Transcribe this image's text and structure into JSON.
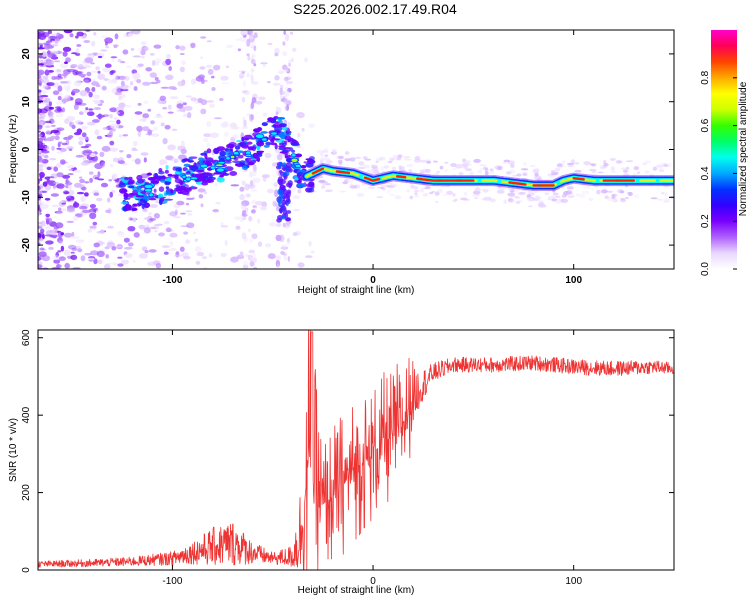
{
  "page": {
    "title": "S225.2026.002.17.49.R04"
  },
  "chart_data": [
    {
      "type": "heatmap",
      "xlabel": "Height of straight line (km)",
      "ylabel": "Frequency (Hz)",
      "xlim": [
        -167,
        150
      ],
      "ylim": [
        -25,
        25
      ],
      "x_ticks": [
        -100,
        0,
        100
      ],
      "y_ticks": [
        -20,
        -10,
        0,
        10,
        20
      ],
      "colorbar": {
        "label": "Normalized spectral amplitude",
        "range": [
          0,
          1
        ],
        "ticks": [
          0.0,
          0.2,
          0.4,
          0.6,
          0.8
        ],
        "colormap": [
          "#ffffff",
          "#e8d8ff",
          "#b060ff",
          "#7a00ff",
          "#3300ff",
          "#0033ff",
          "#00a8ff",
          "#00ffee",
          "#00ff66",
          "#33ff00",
          "#ccff00",
          "#ffff00",
          "#ffaa00",
          "#ff4400",
          "#ff0055",
          "#ff00cc"
        ]
      },
      "ridge": {
        "x": [
          -125,
          -115,
          -105,
          -95,
          -85,
          -75,
          -65,
          -55,
          -50,
          -45,
          -40,
          -35,
          -30,
          -25,
          -20,
          -10,
          0,
          10,
          20,
          30,
          40,
          50,
          60,
          70,
          80,
          90,
          95,
          100,
          110,
          120,
          130,
          140,
          150
        ],
        "freq": [
          -9.5,
          -9,
          -7.5,
          -6,
          -4,
          -3,
          -1,
          2,
          4,
          3,
          -1,
          -6,
          -5,
          -4,
          -4.5,
          -5,
          -6.5,
          -5.5,
          -6,
          -6.5,
          -6.5,
          -6.5,
          -6.5,
          -7,
          -7.5,
          -7.5,
          -6.5,
          -6,
          -6.5,
          -6.5,
          -6.5,
          -6.5,
          -6.5
        ]
      },
      "noise_region_x": [
        -167,
        -30
      ],
      "colors": {
        "ridge_outer": "#0033ff",
        "ridge_mid": "#00ffee",
        "ridge_core": "#ff2200"
      }
    },
    {
      "type": "line",
      "xlabel": "Height of straight line (km)",
      "ylabel": "SNR (10 * v/v)",
      "xlim": [
        -167,
        150
      ],
      "ylim": [
        0,
        620
      ],
      "x_ticks": [
        -100,
        0,
        100
      ],
      "y_ticks": [
        0,
        200,
        400,
        600
      ],
      "series": [
        {
          "color": "#ee3333",
          "envelope": {
            "x": [
              -167,
              -140,
              -120,
              -100,
              -90,
              -80,
              -70,
              -60,
              -50,
              -40,
              -35,
              -32,
              -30,
              -25,
              -20,
              -10,
              0,
              10,
              15,
              20,
              25,
              30,
              40,
              60,
              80,
              100,
              120,
              140,
              150
            ],
            "mean": [
              15,
              18,
              22,
              30,
              45,
              60,
              70,
              45,
              30,
              35,
              120,
              300,
              250,
              170,
              190,
              260,
              300,
              350,
              380,
              450,
              480,
              510,
              530,
              530,
              535,
              525,
              520,
              525,
              520
            ],
            "amp": [
              8,
              10,
              12,
              18,
              30,
              50,
              60,
              30,
              15,
              30,
              150,
              280,
              200,
              120,
              120,
              120,
              120,
              110,
              120,
              70,
              40,
              25,
              20,
              20,
              20,
              20,
              20,
              18,
              15
            ]
          }
        }
      ]
    }
  ]
}
